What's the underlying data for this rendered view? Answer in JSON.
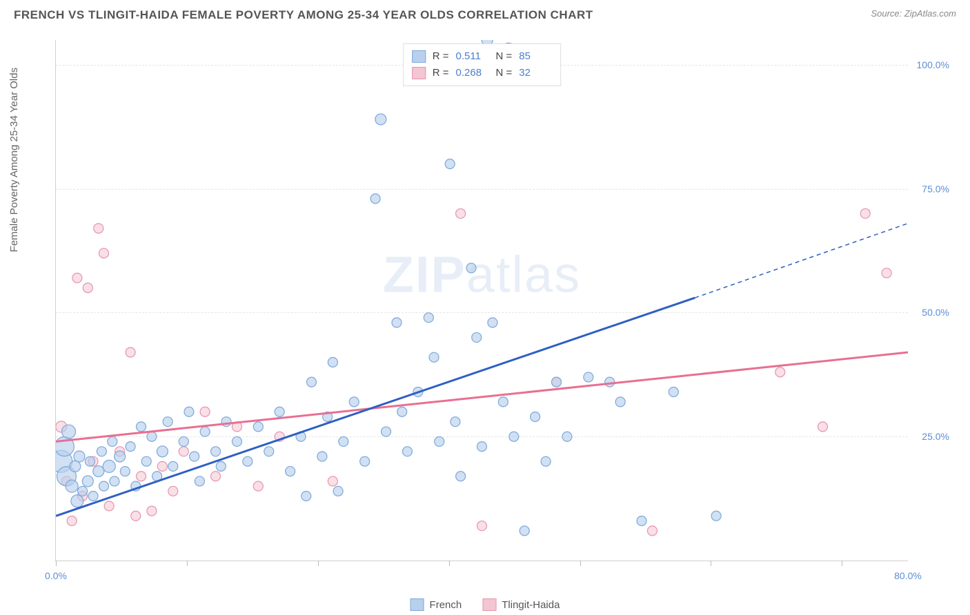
{
  "header": {
    "title": "FRENCH VS TLINGIT-HAIDA FEMALE POVERTY AMONG 25-34 YEAR OLDS CORRELATION CHART",
    "source_prefix": "Source: ",
    "source_name": "ZipAtlas.com"
  },
  "watermark": {
    "part1": "ZIP",
    "part2": "atlas"
  },
  "chart": {
    "type": "scatter",
    "xlim": [
      0,
      80
    ],
    "ylim": [
      0,
      105
    ],
    "x_ticks": [
      0,
      12.3,
      24.6,
      36.9,
      49.2,
      61.5,
      73.8
    ],
    "y_gridlines": [
      25,
      50,
      75,
      100
    ],
    "y_tick_labels": [
      "25.0%",
      "50.0%",
      "75.0%",
      "100.0%"
    ],
    "x_axis_labels": [
      {
        "pos": 0,
        "label": "0.0%"
      },
      {
        "pos": 80,
        "label": "80.0%"
      }
    ],
    "y_axis_title": "Female Poverty Among 25-34 Year Olds",
    "background_color": "#ffffff",
    "grid_color": "#e5e5e5",
    "axis_color": "#d0d0d0",
    "label_color": "#5b8dd6",
    "label_fontsize": 14,
    "series": {
      "french": {
        "label": "French",
        "fill": "#b9d0ec",
        "stroke": "#7aa8da",
        "fill_opacity": 0.65,
        "line_color": "#2d5fc4",
        "line_width": 3,
        "r_value": "0.511",
        "n_value": "85",
        "regression": {
          "x1": 0,
          "y1": 9,
          "x2": 60,
          "y2": 53,
          "dash_from_x": 60,
          "dash_to_x": 80,
          "dash_to_y": 68
        },
        "points": [
          {
            "x": 0.5,
            "y": 20,
            "r": 16
          },
          {
            "x": 0.8,
            "y": 23,
            "r": 14
          },
          {
            "x": 1,
            "y": 17,
            "r": 14
          },
          {
            "x": 1.2,
            "y": 26,
            "r": 10
          },
          {
            "x": 1.5,
            "y": 15,
            "r": 9
          },
          {
            "x": 1.8,
            "y": 19,
            "r": 8
          },
          {
            "x": 2,
            "y": 12,
            "r": 9
          },
          {
            "x": 2.2,
            "y": 21,
            "r": 8
          },
          {
            "x": 2.5,
            "y": 14,
            "r": 7
          },
          {
            "x": 3,
            "y": 16,
            "r": 8
          },
          {
            "x": 3.2,
            "y": 20,
            "r": 7
          },
          {
            "x": 3.5,
            "y": 13,
            "r": 7
          },
          {
            "x": 4,
            "y": 18,
            "r": 8
          },
          {
            "x": 4.3,
            "y": 22,
            "r": 7
          },
          {
            "x": 4.5,
            "y": 15,
            "r": 7
          },
          {
            "x": 5,
            "y": 19,
            "r": 9
          },
          {
            "x": 5.3,
            "y": 24,
            "r": 7
          },
          {
            "x": 5.5,
            "y": 16,
            "r": 7
          },
          {
            "x": 6,
            "y": 21,
            "r": 8
          },
          {
            "x": 6.5,
            "y": 18,
            "r": 7
          },
          {
            "x": 7,
            "y": 23,
            "r": 7
          },
          {
            "x": 7.5,
            "y": 15,
            "r": 7
          },
          {
            "x": 8,
            "y": 27,
            "r": 7
          },
          {
            "x": 8.5,
            "y": 20,
            "r": 7
          },
          {
            "x": 9,
            "y": 25,
            "r": 7
          },
          {
            "x": 9.5,
            "y": 17,
            "r": 7
          },
          {
            "x": 10,
            "y": 22,
            "r": 8
          },
          {
            "x": 10.5,
            "y": 28,
            "r": 7
          },
          {
            "x": 11,
            "y": 19,
            "r": 7
          },
          {
            "x": 12,
            "y": 24,
            "r": 7
          },
          {
            "x": 12.5,
            "y": 30,
            "r": 7
          },
          {
            "x": 13,
            "y": 21,
            "r": 7
          },
          {
            "x": 13.5,
            "y": 16,
            "r": 7
          },
          {
            "x": 14,
            "y": 26,
            "r": 7
          },
          {
            "x": 15,
            "y": 22,
            "r": 7
          },
          {
            "x": 15.5,
            "y": 19,
            "r": 7
          },
          {
            "x": 16,
            "y": 28,
            "r": 7
          },
          {
            "x": 17,
            "y": 24,
            "r": 7
          },
          {
            "x": 18,
            "y": 20,
            "r": 7
          },
          {
            "x": 19,
            "y": 27,
            "r": 7
          },
          {
            "x": 20,
            "y": 22,
            "r": 7
          },
          {
            "x": 21,
            "y": 30,
            "r": 7
          },
          {
            "x": 22,
            "y": 18,
            "r": 7
          },
          {
            "x": 23,
            "y": 25,
            "r": 7
          },
          {
            "x": 23.5,
            "y": 13,
            "r": 7
          },
          {
            "x": 24,
            "y": 36,
            "r": 7
          },
          {
            "x": 25,
            "y": 21,
            "r": 7
          },
          {
            "x": 25.5,
            "y": 29,
            "r": 7
          },
          {
            "x": 26,
            "y": 40,
            "r": 7
          },
          {
            "x": 26.5,
            "y": 14,
            "r": 7
          },
          {
            "x": 27,
            "y": 24,
            "r": 7
          },
          {
            "x": 28,
            "y": 32,
            "r": 7
          },
          {
            "x": 29,
            "y": 20,
            "r": 7
          },
          {
            "x": 30,
            "y": 73,
            "r": 7
          },
          {
            "x": 30.5,
            "y": 89,
            "r": 8
          },
          {
            "x": 31,
            "y": 26,
            "r": 7
          },
          {
            "x": 32,
            "y": 48,
            "r": 7
          },
          {
            "x": 32.5,
            "y": 30,
            "r": 7
          },
          {
            "x": 33,
            "y": 22,
            "r": 7
          },
          {
            "x": 34,
            "y": 34,
            "r": 7
          },
          {
            "x": 35,
            "y": 49,
            "r": 7
          },
          {
            "x": 35.5,
            "y": 41,
            "r": 7
          },
          {
            "x": 36,
            "y": 24,
            "r": 7
          },
          {
            "x": 37,
            "y": 80,
            "r": 7
          },
          {
            "x": 37.5,
            "y": 28,
            "r": 7
          },
          {
            "x": 38,
            "y": 17,
            "r": 7
          },
          {
            "x": 39,
            "y": 59,
            "r": 7
          },
          {
            "x": 39.5,
            "y": 45,
            "r": 7
          },
          {
            "x": 40,
            "y": 23,
            "r": 7
          },
          {
            "x": 40.5,
            "y": 105,
            "r": 8
          },
          {
            "x": 41,
            "y": 48,
            "r": 7
          },
          {
            "x": 42,
            "y": 32,
            "r": 7
          },
          {
            "x": 42.5,
            "y": 103,
            "r": 10
          },
          {
            "x": 43,
            "y": 25,
            "r": 7
          },
          {
            "x": 44,
            "y": 6,
            "r": 7
          },
          {
            "x": 45,
            "y": 29,
            "r": 7
          },
          {
            "x": 46,
            "y": 20,
            "r": 7
          },
          {
            "x": 47,
            "y": 36,
            "r": 7
          },
          {
            "x": 48,
            "y": 25,
            "r": 7
          },
          {
            "x": 50,
            "y": 37,
            "r": 7
          },
          {
            "x": 52,
            "y": 36,
            "r": 7
          },
          {
            "x": 53,
            "y": 32,
            "r": 7
          },
          {
            "x": 55,
            "y": 8,
            "r": 7
          },
          {
            "x": 58,
            "y": 34,
            "r": 7
          },
          {
            "x": 62,
            "y": 9,
            "r": 7
          }
        ]
      },
      "tlingit_haida": {
        "label": "Tlingit-Haida",
        "fill": "#f4c5d2",
        "stroke": "#e693ad",
        "fill_opacity": 0.55,
        "line_color": "#e86f91",
        "line_width": 3,
        "r_value": "0.268",
        "n_value": "32",
        "regression": {
          "x1": 0,
          "y1": 24,
          "x2": 80,
          "y2": 42
        },
        "points": [
          {
            "x": 0.5,
            "y": 27,
            "r": 8
          },
          {
            "x": 1,
            "y": 16,
            "r": 7
          },
          {
            "x": 1.5,
            "y": 8,
            "r": 7
          },
          {
            "x": 2,
            "y": 57,
            "r": 7
          },
          {
            "x": 2.5,
            "y": 13,
            "r": 7
          },
          {
            "x": 3,
            "y": 55,
            "r": 7
          },
          {
            "x": 3.5,
            "y": 20,
            "r": 7
          },
          {
            "x": 4,
            "y": 67,
            "r": 7
          },
          {
            "x": 4.5,
            "y": 62,
            "r": 7
          },
          {
            "x": 5,
            "y": 11,
            "r": 7
          },
          {
            "x": 6,
            "y": 22,
            "r": 7
          },
          {
            "x": 7,
            "y": 42,
            "r": 7
          },
          {
            "x": 7.5,
            "y": 9,
            "r": 7
          },
          {
            "x": 8,
            "y": 17,
            "r": 7
          },
          {
            "x": 9,
            "y": 10,
            "r": 7
          },
          {
            "x": 10,
            "y": 19,
            "r": 7
          },
          {
            "x": 11,
            "y": 14,
            "r": 7
          },
          {
            "x": 12,
            "y": 22,
            "r": 7
          },
          {
            "x": 14,
            "y": 30,
            "r": 7
          },
          {
            "x": 15,
            "y": 17,
            "r": 7
          },
          {
            "x": 17,
            "y": 27,
            "r": 7
          },
          {
            "x": 19,
            "y": 15,
            "r": 7
          },
          {
            "x": 21,
            "y": 25,
            "r": 7
          },
          {
            "x": 26,
            "y": 16,
            "r": 7
          },
          {
            "x": 38,
            "y": 70,
            "r": 7
          },
          {
            "x": 40,
            "y": 7,
            "r": 7
          },
          {
            "x": 47,
            "y": 36,
            "r": 7
          },
          {
            "x": 56,
            "y": 6,
            "r": 7
          },
          {
            "x": 68,
            "y": 38,
            "r": 7
          },
          {
            "x": 72,
            "y": 27,
            "r": 7
          },
          {
            "x": 76,
            "y": 70,
            "r": 7
          },
          {
            "x": 78,
            "y": 58,
            "r": 7
          }
        ]
      }
    }
  },
  "legend_top": {
    "r_label": "R =",
    "n_label": "N ="
  },
  "legend_bottom": {
    "items": [
      "french",
      "tlingit_haida"
    ]
  }
}
